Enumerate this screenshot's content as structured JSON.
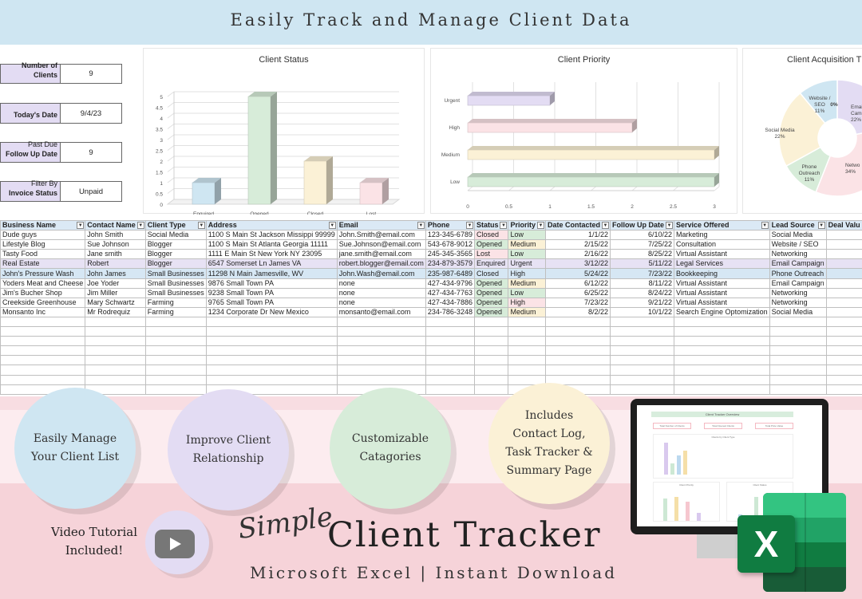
{
  "banner": {
    "title": "Easily Track and Manage Client Data"
  },
  "summary": [
    {
      "label_top": "",
      "label_bold": "Number of Clients",
      "value": "9"
    },
    {
      "label_top": "",
      "label_bold": "Today's Date",
      "value": "9/4/23"
    },
    {
      "label_top": "Past Due",
      "label_bold": "Follow Up Date",
      "value": "9"
    },
    {
      "label_top": "Filter By",
      "label_bold": "Invoice Status",
      "value": "Unpaid"
    }
  ],
  "chart_data": [
    {
      "type": "bar",
      "title": "Client Status",
      "categories": [
        "Enquired",
        "Opened",
        "Closed",
        "Lost"
      ],
      "values": [
        1,
        5,
        2,
        1
      ],
      "ylim": [
        0,
        5
      ],
      "yticks": [
        "0",
        "0.5",
        "1",
        "1.5",
        "2",
        "2.5",
        "3",
        "3.5",
        "4",
        "4.5",
        "5"
      ],
      "colors": [
        "#cfe6f2",
        "#d7ecd9",
        "#fbf1d6",
        "#fbe3e6"
      ],
      "grid": true,
      "legend": "none"
    },
    {
      "type": "bar",
      "orientation": "horizontal",
      "title": "Client Priority",
      "categories": [
        "Urgent",
        "High",
        "Medium",
        "Low"
      ],
      "values": [
        1,
        2,
        3,
        3
      ],
      "xlim": [
        0,
        3
      ],
      "xticks": [
        "0",
        "0.5",
        "1",
        "1.5",
        "2",
        "2.5",
        "3"
      ],
      "colors": [
        "#e3dcf3",
        "#fbe3e6",
        "#fbf1d6",
        "#d7ecd9"
      ],
      "grid": true,
      "legend": "none"
    },
    {
      "type": "pie",
      "title": "Client Acquisition T",
      "slices": [
        {
          "label": "Email Campaign",
          "label_lines": [
            "Emai",
            "Campai"
          ],
          "value": 22,
          "text": "22%",
          "color": "#e3dcf3"
        },
        {
          "label": "Networking",
          "label_lines": [
            "Netwo"
          ],
          "value": 34,
          "text": "34%",
          "color": "#fbe3e6"
        },
        {
          "label": "Phone Outreach",
          "label_lines": [
            "Phone",
            "Outreach"
          ],
          "value": 11,
          "text": "11%",
          "color": "#d7ecd9"
        },
        {
          "label": "Social Media",
          "label_lines": [
            "Social Media"
          ],
          "value": 22,
          "text": "22%",
          "color": "#fbf1d6"
        },
        {
          "label": "Website / SEO",
          "label_lines": [
            "Website /",
            "SEO"
          ],
          "value": 11,
          "text": "11%",
          "color": "#cfe6f2"
        },
        {
          "label": "",
          "label_lines": [],
          "value": 0,
          "text": "0%",
          "color": "#dddddd"
        }
      ]
    }
  ],
  "table": {
    "headers": [
      "Business Name",
      "Contact Name",
      "Client Type",
      "Address",
      "Email",
      "Phone",
      "Status",
      "Priority",
      "Date Contacted",
      "Follow Up Date",
      "Service Offered",
      "Lead Source",
      "Deal Valu"
    ],
    "rows": [
      [
        "Dude guys",
        "John Smith",
        "Social Media",
        "1100 S Main St Jackson Missippi 99999",
        "John.Smith@email.com",
        "123-345-6789",
        "Closed",
        "Low",
        "1/1/22",
        "6/10/22",
        "Marketing",
        "Social Media",
        ""
      ],
      [
        "Lifestyle Blog",
        "Sue Johnson",
        "Blogger",
        "1100 S Main St Atlanta Georgia 11111",
        "Sue.Johnson@email.com",
        "543-678-9012",
        "Opened",
        "Medium",
        "2/15/22",
        "7/25/22",
        "Consultation",
        "Website / SEO",
        ""
      ],
      [
        "Tasty Food",
        "Jane smith",
        "Blogger",
        "1111 E Main St New York NY 23095",
        "jane.smith@email.com",
        "245-345-3565",
        "Lost",
        "Low",
        "2/16/22",
        "8/25/22",
        "Virtual Assistant",
        "Networking",
        ""
      ],
      [
        "Real Estate",
        "Robert",
        "Blogger",
        "6547 Somerset Ln James VA",
        "robert.blogger@email.com",
        "234-879-3579",
        "Enquired",
        "Urgent",
        "3/12/22",
        "5/11/22",
        "Legal Services",
        "Email Campaign",
        ""
      ],
      [
        "John's Pressure Wash",
        "John James",
        "Small Businesses",
        "11298 N Main Jamesville, WV",
        "John.Wash@email.com",
        "235-987-6489",
        "Closed",
        "High",
        "5/24/22",
        "7/23/22",
        "Bookkeeping",
        "Phone Outreach",
        ""
      ],
      [
        "Yoders Meat and Cheese",
        "Joe Yoder",
        "Small Businesses",
        "9876 Small Town PA",
        "none",
        "427-434-9796",
        "Opened",
        "Medium",
        "6/12/22",
        "8/11/22",
        "Virtual Assistant",
        "Email Campaign",
        ""
      ],
      [
        "Jim's Bucher Shop",
        "Jim Miller",
        "Small Businesses",
        "9238 Small Town PA",
        "none",
        "427-434-7763",
        "Opened",
        "Low",
        "6/25/22",
        "8/24/22",
        "Virtual Assistant",
        "Networking",
        ""
      ],
      [
        "Creekside Greenhouse",
        "Mary Schwartz",
        "Farming",
        "9765 Small Town PA",
        "none",
        "427-434-7886",
        "Opened",
        "High",
        "7/23/22",
        "9/21/22",
        "Virtual Assistant",
        "Networking",
        ""
      ],
      [
        "Monsanto Inc",
        "Mr Rodrequiz",
        "Farming",
        "1234 Corporate Dr New Mexico",
        "monsanto@email.com",
        "234-786-3248",
        "Opened",
        "Medium",
        "8/2/22",
        "10/1/22",
        "Search Engine Optomization",
        "Social Media",
        ""
      ]
    ],
    "row_highlight": [
      "",
      "",
      "",
      "purple",
      "blue",
      "",
      "",
      "",
      ""
    ],
    "empty_rows": 8
  },
  "promo": {
    "bubbles": [
      {
        "text": "Easily Manage\nYour Client List",
        "color": "#cfe6f2"
      },
      {
        "text": "Improve Client\nRelationship",
        "color": "#e3dcf3"
      },
      {
        "text": "Customizable\nCatagories",
        "color": "#d7ecd9"
      },
      {
        "text": "Includes\nContact Log,\nTask Tracker &\nSummary Page",
        "color": "#fbf1d6"
      }
    ],
    "video_text": "Video Tutorial\nIncluded!",
    "brand_script": "Simple",
    "brand_title": "Client Tracker",
    "brand_subtitle": "Microsoft Excel | Instant Download",
    "youtube_icon": "youtube-play-icon",
    "excel_icon": "microsoft-excel-icon",
    "excel_letter": "X"
  },
  "monitor": {
    "title": "Client Tracker Overview",
    "boxes": [
      "Total Number of Clients",
      "Total Opened Clients",
      "Total Price Value"
    ],
    "chart_title": "Clients by Client Type",
    "sub_titles": [
      "Client Priority",
      "Client Status"
    ]
  }
}
